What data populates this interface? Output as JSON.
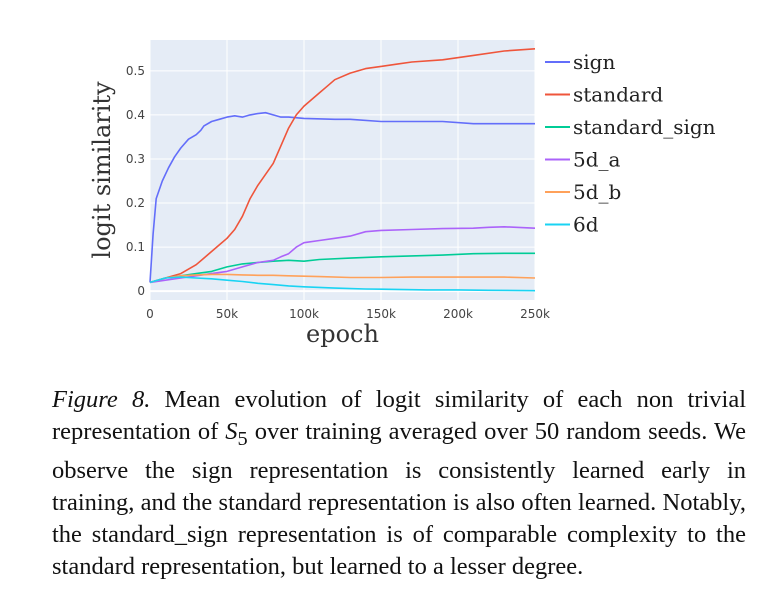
{
  "chart_data": {
    "type": "line",
    "xlabel": "epoch",
    "ylabel": "logit similarity",
    "xlim": [
      0,
      250000
    ],
    "ylim": [
      -0.02,
      0.57
    ],
    "x_ticks": [
      {
        "value": 0,
        "label": "0"
      },
      {
        "value": 50000,
        "label": "50k"
      },
      {
        "value": 100000,
        "label": "100k"
      },
      {
        "value": 150000,
        "label": "150k"
      },
      {
        "value": 200000,
        "label": "200k"
      },
      {
        "value": 250000,
        "label": "250k"
      }
    ],
    "y_ticks": [
      {
        "value": 0,
        "label": "0"
      },
      {
        "value": 0.1,
        "label": "0.1"
      },
      {
        "value": 0.2,
        "label": "0.2"
      },
      {
        "value": 0.3,
        "label": "0.3"
      },
      {
        "value": 0.4,
        "label": "0.4"
      },
      {
        "value": 0.5,
        "label": "0.5"
      }
    ],
    "grid": true,
    "legend_position": "right",
    "series": [
      {
        "name": "sign",
        "color": "#636efa",
        "points": [
          [
            0,
            0.02
          ],
          [
            2000,
            0.13
          ],
          [
            4000,
            0.21
          ],
          [
            8000,
            0.25
          ],
          [
            12000,
            0.28
          ],
          [
            16000,
            0.305
          ],
          [
            20000,
            0.325
          ],
          [
            25000,
            0.345
          ],
          [
            30000,
            0.355
          ],
          [
            33000,
            0.365
          ],
          [
            35000,
            0.375
          ],
          [
            40000,
            0.385
          ],
          [
            45000,
            0.39
          ],
          [
            50000,
            0.395
          ],
          [
            55000,
            0.398
          ],
          [
            60000,
            0.395
          ],
          [
            65000,
            0.4
          ],
          [
            70000,
            0.403
          ],
          [
            75000,
            0.405
          ],
          [
            80000,
            0.4
          ],
          [
            85000,
            0.395
          ],
          [
            90000,
            0.395
          ],
          [
            100000,
            0.392
          ],
          [
            120000,
            0.39
          ],
          [
            130000,
            0.39
          ],
          [
            150000,
            0.385
          ],
          [
            170000,
            0.385
          ],
          [
            190000,
            0.385
          ],
          [
            210000,
            0.38
          ],
          [
            230000,
            0.38
          ],
          [
            250000,
            0.38
          ]
        ]
      },
      {
        "name": "standard",
        "color": "#ef553b",
        "points": [
          [
            0,
            0.02
          ],
          [
            10000,
            0.03
          ],
          [
            20000,
            0.04
          ],
          [
            30000,
            0.06
          ],
          [
            35000,
            0.075
          ],
          [
            40000,
            0.09
          ],
          [
            45000,
            0.105
          ],
          [
            50000,
            0.12
          ],
          [
            55000,
            0.14
          ],
          [
            60000,
            0.17
          ],
          [
            65000,
            0.21
          ],
          [
            70000,
            0.24
          ],
          [
            75000,
            0.265
          ],
          [
            80000,
            0.29
          ],
          [
            85000,
            0.33
          ],
          [
            90000,
            0.37
          ],
          [
            95000,
            0.4
          ],
          [
            100000,
            0.42
          ],
          [
            105000,
            0.435
          ],
          [
            110000,
            0.45
          ],
          [
            115000,
            0.465
          ],
          [
            120000,
            0.48
          ],
          [
            130000,
            0.495
          ],
          [
            140000,
            0.505
          ],
          [
            150000,
            0.51
          ],
          [
            160000,
            0.515
          ],
          [
            170000,
            0.52
          ],
          [
            190000,
            0.525
          ],
          [
            210000,
            0.535
          ],
          [
            230000,
            0.545
          ],
          [
            250000,
            0.55
          ]
        ]
      },
      {
        "name": "standard_sign",
        "color": "#00cc96",
        "points": [
          [
            0,
            0.02
          ],
          [
            10000,
            0.03
          ],
          [
            20000,
            0.035
          ],
          [
            30000,
            0.04
          ],
          [
            40000,
            0.045
          ],
          [
            50000,
            0.055
          ],
          [
            60000,
            0.062
          ],
          [
            70000,
            0.065
          ],
          [
            80000,
            0.068
          ],
          [
            90000,
            0.07
          ],
          [
            100000,
            0.068
          ],
          [
            110000,
            0.072
          ],
          [
            130000,
            0.075
          ],
          [
            150000,
            0.078
          ],
          [
            170000,
            0.08
          ],
          [
            190000,
            0.082
          ],
          [
            210000,
            0.085
          ],
          [
            230000,
            0.086
          ],
          [
            250000,
            0.086
          ]
        ]
      },
      {
        "name": "5d_a",
        "color": "#ab63fa",
        "points": [
          [
            0,
            0.02
          ],
          [
            10000,
            0.025
          ],
          [
            20000,
            0.03
          ],
          [
            30000,
            0.035
          ],
          [
            40000,
            0.04
          ],
          [
            50000,
            0.045
          ],
          [
            60000,
            0.055
          ],
          [
            70000,
            0.065
          ],
          [
            80000,
            0.07
          ],
          [
            85000,
            0.078
          ],
          [
            90000,
            0.085
          ],
          [
            95000,
            0.1
          ],
          [
            100000,
            0.11
          ],
          [
            110000,
            0.115
          ],
          [
            120000,
            0.12
          ],
          [
            130000,
            0.125
          ],
          [
            140000,
            0.135
          ],
          [
            150000,
            0.138
          ],
          [
            170000,
            0.14
          ],
          [
            190000,
            0.142
          ],
          [
            210000,
            0.143
          ],
          [
            220000,
            0.145
          ],
          [
            230000,
            0.146
          ],
          [
            250000,
            0.143
          ]
        ]
      },
      {
        "name": "5d_b",
        "color": "#ffa15a",
        "points": [
          [
            0,
            0.02
          ],
          [
            10000,
            0.03
          ],
          [
            20000,
            0.035
          ],
          [
            30000,
            0.037
          ],
          [
            40000,
            0.038
          ],
          [
            50000,
            0.038
          ],
          [
            60000,
            0.037
          ],
          [
            70000,
            0.036
          ],
          [
            80000,
            0.036
          ],
          [
            90000,
            0.035
          ],
          [
            100000,
            0.034
          ],
          [
            110000,
            0.033
          ],
          [
            130000,
            0.031
          ],
          [
            150000,
            0.031
          ],
          [
            170000,
            0.032
          ],
          [
            190000,
            0.032
          ],
          [
            210000,
            0.032
          ],
          [
            230000,
            0.032
          ],
          [
            250000,
            0.03
          ]
        ]
      },
      {
        "name": "6d",
        "color": "#19d3f3",
        "points": [
          [
            0,
            0.02
          ],
          [
            10000,
            0.03
          ],
          [
            20000,
            0.032
          ],
          [
            30000,
            0.03
          ],
          [
            40000,
            0.028
          ],
          [
            50000,
            0.025
          ],
          [
            60000,
            0.022
          ],
          [
            70000,
            0.018
          ],
          [
            80000,
            0.015
          ],
          [
            90000,
            0.012
          ],
          [
            100000,
            0.01
          ],
          [
            120000,
            0.007
          ],
          [
            140000,
            0.005
          ],
          [
            160000,
            0.004
          ],
          [
            180000,
            0.003
          ],
          [
            200000,
            0.003
          ],
          [
            220000,
            0.002
          ],
          [
            250000,
            0.001
          ]
        ]
      }
    ]
  },
  "caption": {
    "label": "Figure 8.",
    "text_before_math": " Mean evolution of logit similarity of each non trivial representation of ",
    "math_symbol": "S",
    "math_subscript": "5",
    "text_after_math": " over training averaged over 50 random seeds. We observe the sign representation is consistently learned early in training, and the standard representation is also often learned. Notably, the standard_sign representation is of comparable complexity to the standard representation, but learned to a lesser degree."
  }
}
